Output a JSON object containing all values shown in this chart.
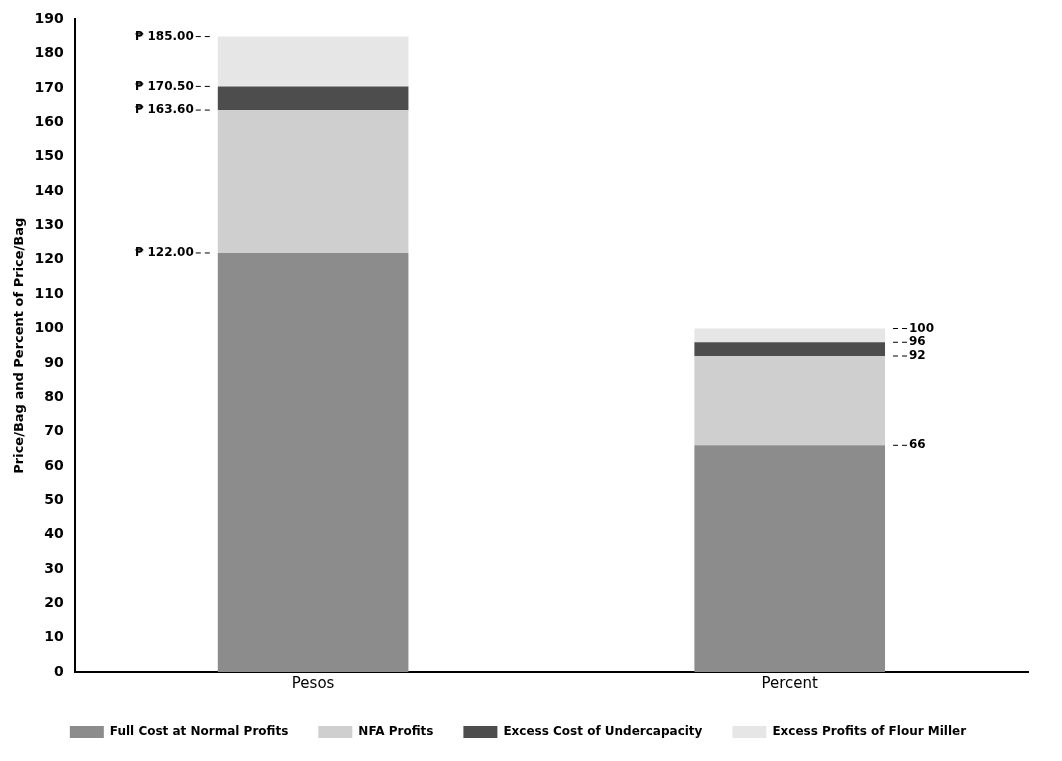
{
  "chart_data": {
    "type": "bar",
    "stacked": true,
    "ylabel": "Price/Bag and Percent of Price/Bag",
    "categories": [
      "Pesos",
      "Percent"
    ],
    "ylim": [
      0,
      190
    ],
    "yticks": [
      0,
      10,
      20,
      30,
      40,
      50,
      60,
      70,
      80,
      90,
      100,
      110,
      120,
      130,
      140,
      150,
      160,
      170,
      180,
      190
    ],
    "grid": false,
    "legend": "bottom",
    "series": [
      {
        "name": "Full Cost at Normal Profits",
        "color": "#8c8c8c",
        "values": [
          122,
          66
        ]
      },
      {
        "name": "NFA Profits",
        "color": "#cfcfcf",
        "values": [
          41.6,
          26
        ]
      },
      {
        "name": "Excess Cost of Undercapacity",
        "color": "#4d4d4d",
        "values": [
          6.9,
          4
        ]
      },
      {
        "name": "Excess Profits of Flour Miller",
        "color": "#e6e6e6",
        "values": [
          14.5,
          4
        ]
      }
    ],
    "annotations": [
      "₱ 122.00",
      "₱ 163.60",
      "₱ 170.50",
      "₱ 185.00",
      "66",
      "92",
      "96",
      "100"
    ]
  }
}
